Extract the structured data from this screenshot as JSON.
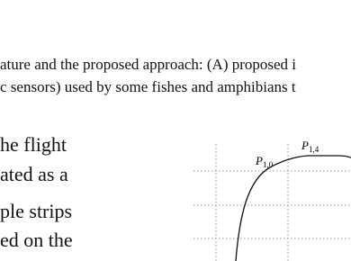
{
  "caption": {
    "lines": [
      "ature and the proposed approach: (A) proposed i",
      "c sensors) used by some fishes and amphibians t"
    ]
  },
  "body": {
    "lines": [
      "he flight",
      "ated as a",
      "ple strips",
      "ed on the"
    ]
  },
  "figure": {
    "labels": [
      {
        "main": "P",
        "sub": "1,0"
      },
      {
        "main": "P",
        "sub": "1,4"
      }
    ]
  }
}
